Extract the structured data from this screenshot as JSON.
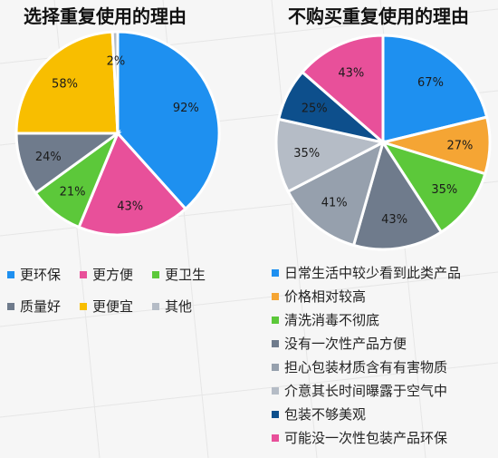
{
  "chart_data": [
    {
      "type": "pie",
      "title": "选择重复使用的理由",
      "series": [
        {
          "name": "更环保",
          "value": 92,
          "label": "92%",
          "color": "#1e90f0"
        },
        {
          "name": "更方便",
          "value": 43,
          "label": "43%",
          "color": "#e8509a"
        },
        {
          "name": "更卫生",
          "value": 21,
          "label": "21%",
          "color": "#5cc83a"
        },
        {
          "name": "质量好",
          "value": 24,
          "label": "24%",
          "color": "#6f7b8c"
        },
        {
          "name": "更便宜",
          "value": 58,
          "label": "58%",
          "color": "#f8be00"
        },
        {
          "name": "其他",
          "value": 2,
          "label": "2%",
          "color": "#b5bcc6"
        }
      ],
      "legend_placement": "bottom"
    },
    {
      "type": "pie",
      "title": "不购买重复使用的理由",
      "series": [
        {
          "name": "日常生活中较少看到此类产品",
          "value": 67,
          "label": "67%",
          "color": "#1e90f0"
        },
        {
          "name": "价格相对较高",
          "value": 27,
          "label": "27%",
          "color": "#f5a534"
        },
        {
          "name": "清洗消毒不彻底",
          "value": 35,
          "label": "35%",
          "color": "#5cc83a"
        },
        {
          "name": "没有一次性产品方便",
          "value": 43,
          "label": "43%",
          "color": "#6f7b8c"
        },
        {
          "name": "担心包装材质含有有害物质",
          "value": 41,
          "label": "41%",
          "color": "#96a0ad"
        },
        {
          "name": "介意其长时间曝露于空气中",
          "value": 35,
          "label": "35%",
          "color": "#b5bcc6"
        },
        {
          "name": "包装不够美观",
          "value": 25,
          "label": "25%",
          "color": "#0d4f8c"
        },
        {
          "name": "可能没一次性包装产品环保",
          "value": 43,
          "label": "43%",
          "color": "#e8509a"
        }
      ],
      "legend_placement": "bottom"
    }
  ]
}
